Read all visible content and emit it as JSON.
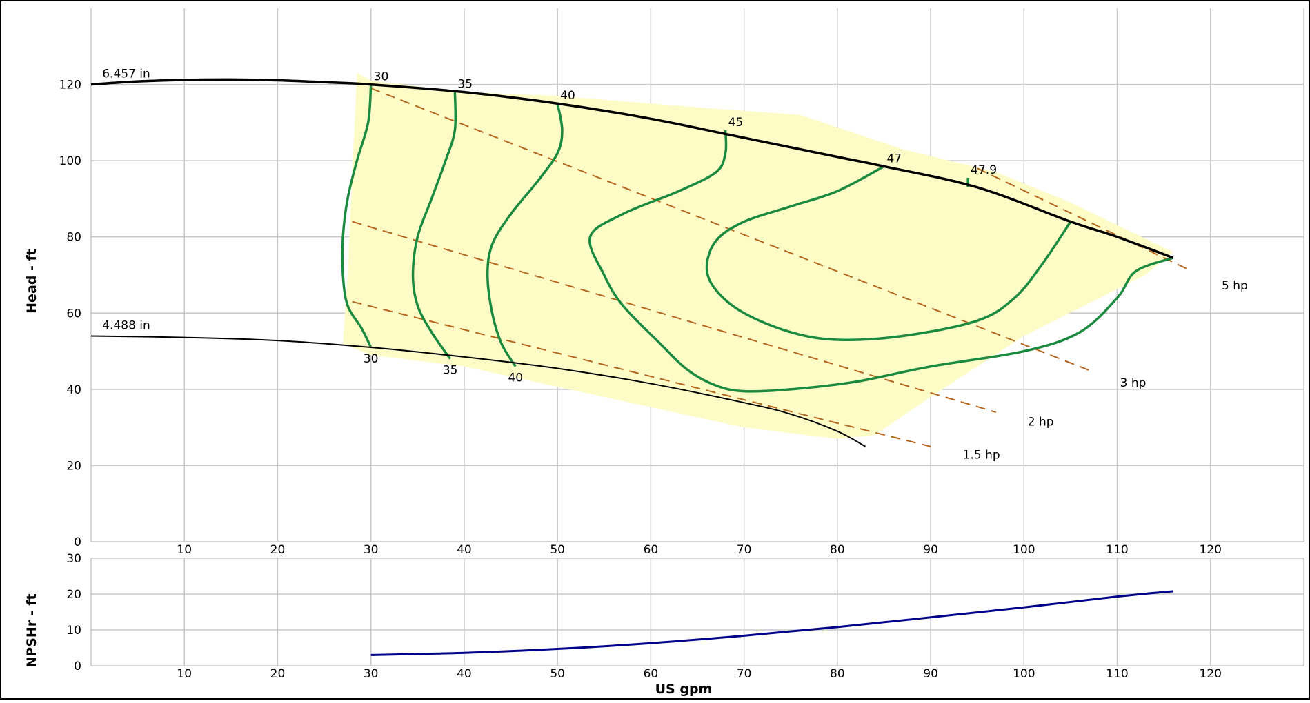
{
  "chart_data": [
    {
      "type": "line",
      "panel": "head",
      "ylabel": "Head - ft",
      "xlim": [
        0,
        130
      ],
      "ylim": [
        0,
        140
      ],
      "x_ticks": [
        10,
        20,
        30,
        40,
        50,
        60,
        70,
        80,
        90,
        100,
        110,
        120
      ],
      "y_ticks": [
        0,
        20,
        40,
        60,
        80,
        100,
        120
      ],
      "grid": true,
      "colors": {
        "impeller": "#000000",
        "efficiency": "#1a8a3f",
        "power": "#b5651d",
        "region": "#fdfbc6"
      },
      "region_points": [
        [
          28.5,
          123
        ],
        [
          30,
          121
        ],
        [
          40,
          118
        ],
        [
          50,
          117
        ],
        [
          60,
          115
        ],
        [
          65,
          114
        ],
        [
          76,
          112
        ],
        [
          87,
          103
        ],
        [
          92,
          100
        ],
        [
          97,
          97
        ],
        [
          105,
          89
        ],
        [
          116,
          76
        ],
        [
          113,
          70
        ],
        [
          100,
          54
        ],
        [
          90,
          38
        ],
        [
          84,
          28
        ],
        [
          80,
          27
        ],
        [
          70,
          30
        ],
        [
          55,
          38
        ],
        [
          40,
          46
        ],
        [
          30,
          49
        ],
        [
          27,
          52
        ],
        [
          27.5,
          70
        ]
      ],
      "impeller_curves": [
        {
          "label": "6.457 in",
          "points": [
            [
              0,
              120
            ],
            [
              5,
              120.8
            ],
            [
              10,
              121.2
            ],
            [
              15,
              121.3
            ],
            [
              20,
              121.1
            ],
            [
              25,
              120.6
            ],
            [
              30,
              120
            ],
            [
              40,
              118
            ],
            [
              50,
              115
            ],
            [
              60,
              111
            ],
            [
              70,
              106
            ],
            [
              80,
              101
            ],
            [
              85,
              98.5
            ],
            [
              95,
              93
            ],
            [
              105,
              84
            ],
            [
              110,
              80
            ],
            [
              116,
              74.5
            ]
          ]
        },
        {
          "label": "4.488 in",
          "points": [
            [
              0,
              54
            ],
            [
              10,
              53.6
            ],
            [
              20,
              52.8
            ],
            [
              30,
              51
            ],
            [
              40,
              48.5
            ],
            [
              50,
              45.5
            ],
            [
              60,
              41.5
            ],
            [
              70,
              36.5
            ],
            [
              75,
              33.5
            ],
            [
              80,
              29
            ],
            [
              83,
              25
            ]
          ]
        }
      ],
      "efficiency_curves": [
        {
          "top_label": "30",
          "bottom_label": "30",
          "points": [
            [
              30,
              120
            ],
            [
              29.7,
              110
            ],
            [
              28.5,
              100
            ],
            [
              27.5,
              90
            ],
            [
              27,
              80
            ],
            [
              27,
              70
            ],
            [
              27.5,
              62
            ],
            [
              29,
              56
            ],
            [
              30,
              51
            ]
          ]
        },
        {
          "top_label": "35",
          "bottom_label": "35",
          "points": [
            [
              39,
              118
            ],
            [
              39,
              108
            ],
            [
              38,
              100
            ],
            [
              36.5,
              90
            ],
            [
              35,
              80
            ],
            [
              34.5,
              70
            ],
            [
              35,
              62
            ],
            [
              36.5,
              55
            ],
            [
              38.5,
              48
            ]
          ]
        },
        {
          "top_label": "40",
          "bottom_label": "40",
          "points": [
            [
              50,
              115
            ],
            [
              50.5,
              108
            ],
            [
              50,
              102
            ],
            [
              48,
              95
            ],
            [
              45,
              86
            ],
            [
              43,
              78
            ],
            [
              42.5,
              70
            ],
            [
              43,
              60
            ],
            [
              44,
              52
            ],
            [
              45.5,
              46
            ]
          ]
        },
        {
          "top_label": "45",
          "points": [
            [
              68,
              108
            ],
            [
              68,
              102
            ],
            [
              67,
              97
            ],
            [
              63,
              92
            ],
            [
              57,
              86
            ],
            [
              53.5,
              80
            ],
            [
              55,
              70
            ],
            [
              57,
              62
            ],
            [
              61,
              52
            ],
            [
              64,
              45
            ],
            [
              67,
              41
            ],
            [
              70,
              39.5
            ],
            [
              75,
              40
            ],
            [
              82,
              42
            ],
            [
              90,
              46
            ],
            [
              100,
              50
            ],
            [
              106,
              55
            ],
            [
              110,
              64
            ],
            [
              112,
              71
            ],
            [
              116,
              74.5
            ]
          ]
        },
        {
          "top_label": "47",
          "points": [
            [
              85,
              98.5
            ],
            [
              80,
              92
            ],
            [
              75,
              88
            ],
            [
              70,
              84
            ],
            [
              67,
              79
            ],
            [
              66,
              72
            ],
            [
              67,
              66
            ],
            [
              70,
              60
            ],
            [
              75,
              55
            ],
            [
              80,
              53
            ],
            [
              87,
              54
            ],
            [
              95,
              58
            ],
            [
              99,
              64
            ],
            [
              102,
              73
            ],
            [
              105,
              84
            ]
          ]
        },
        {
          "top_label": "47.9",
          "points": [
            [
              94,
              95.5
            ],
            [
              94,
              93
            ]
          ]
        }
      ],
      "power_lines": [
        {
          "label": "5 hp",
          "points": [
            [
              95,
              98
            ],
            [
              118,
              71
            ]
          ]
        },
        {
          "label": "3 hp",
          "points": [
            [
              30,
              119
            ],
            [
              107,
              45
            ]
          ]
        },
        {
          "label": "2 hp",
          "points": [
            [
              28,
              84
            ],
            [
              97,
              34
            ]
          ]
        },
        {
          "label": "1.5 hp",
          "points": [
            [
              28,
              63
            ],
            [
              90,
              25
            ]
          ]
        }
      ]
    },
    {
      "type": "line",
      "panel": "npshr",
      "ylabel": "NPSHr - ft",
      "xlabel": "US gpm",
      "xlim": [
        0,
        130
      ],
      "ylim": [
        0,
        30
      ],
      "x_ticks": [
        10,
        20,
        30,
        40,
        50,
        60,
        70,
        80,
        90,
        100,
        110,
        120
      ],
      "y_ticks": [
        0,
        10,
        20,
        30
      ],
      "grid": true,
      "colors": {
        "npshr": "#00008b"
      },
      "series": [
        {
          "points": [
            [
              30,
              3
            ],
            [
              40,
              3.6
            ],
            [
              50,
              4.7
            ],
            [
              60,
              6.3
            ],
            [
              70,
              8.4
            ],
            [
              80,
              10.8
            ],
            [
              90,
              13.5
            ],
            [
              100,
              16.3
            ],
            [
              110,
              19.3
            ],
            [
              116,
              20.8
            ]
          ]
        }
      ]
    }
  ]
}
